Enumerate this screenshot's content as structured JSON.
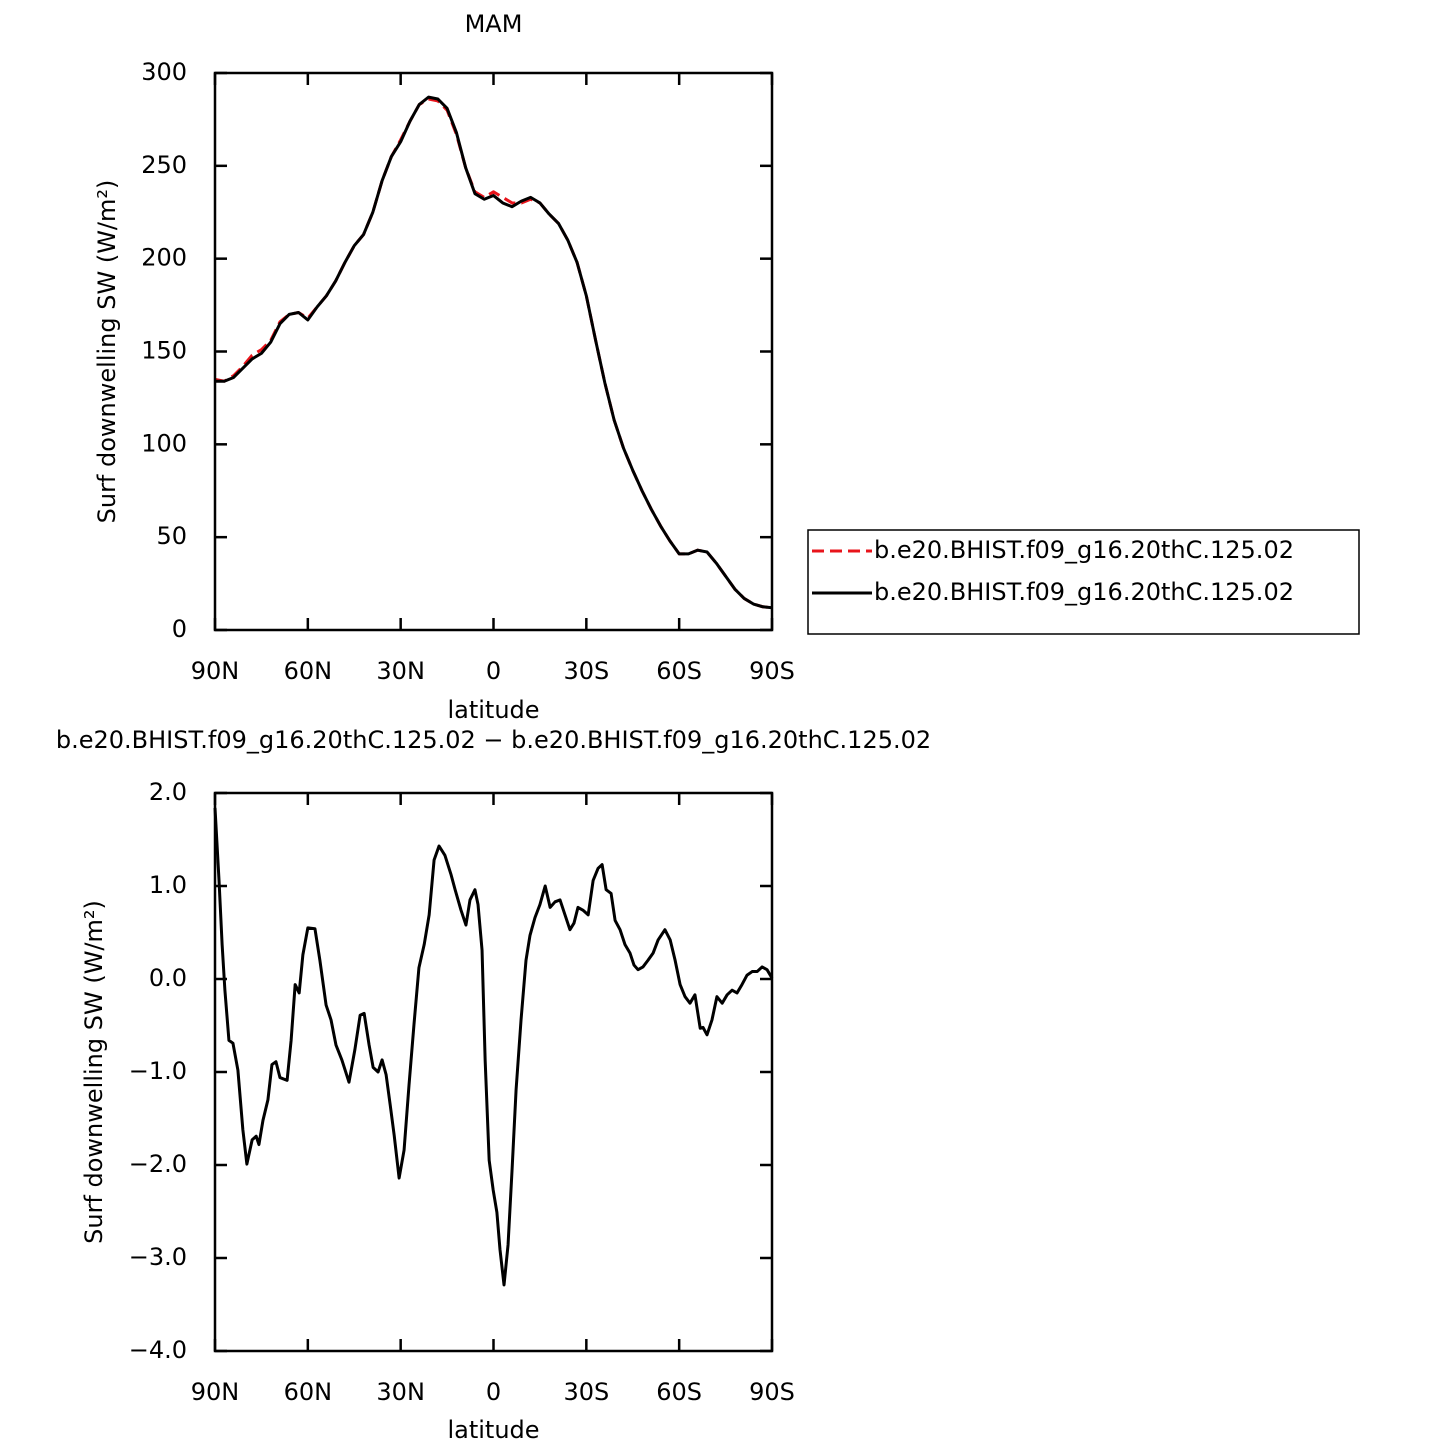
{
  "chart_data": [
    {
      "type": "line",
      "title": "MAM",
      "xlabel": "latitude",
      "ylabel": "Surf downwelling SW (W/m²)",
      "x": [
        90,
        87,
        84,
        81,
        78,
        75,
        72,
        69,
        66,
        63,
        60,
        57,
        54,
        51,
        48,
        45,
        42,
        39,
        36,
        33,
        30,
        27,
        24,
        21,
        18,
        15,
        12,
        9,
        6,
        3,
        0,
        -3,
        -6,
        -9,
        -12,
        -15,
        -18,
        -21,
        -24,
        -27,
        -30,
        -33,
        -36,
        -39,
        -42,
        -45,
        -48,
        -51,
        -54,
        -57,
        -60,
        -63,
        -66,
        -69,
        -72,
        -75,
        -78,
        -81,
        -84,
        -87,
        -90
      ],
      "series": [
        {
          "name": "b.e20.BHIST.f09_g16.20thC.125.02",
          "color": "#e8141b",
          "dashed": true,
          "values": [
            135,
            134,
            137,
            142,
            148,
            151,
            156,
            166,
            170,
            171,
            168,
            174,
            180,
            188,
            198,
            207,
            213,
            225,
            242,
            255,
            264,
            274,
            283,
            286,
            285,
            280,
            267,
            249,
            236,
            233,
            236,
            233,
            230,
            230,
            232,
            230,
            224,
            219,
            210,
            198,
            180,
            156,
            133,
            113,
            98,
            86,
            75,
            65,
            56,
            48,
            41,
            41,
            43,
            42,
            36,
            29,
            22,
            17,
            14,
            12.5,
            12
          ]
        },
        {
          "name": "b.e20.BHIST.f09_g16.20thC.125.02",
          "color": "#000000",
          "dashed": false,
          "values": [
            134,
            134,
            136,
            141,
            146,
            149,
            155,
            165,
            170,
            171,
            167,
            174,
            180,
            188,
            198,
            207,
            213,
            225,
            242,
            255,
            263,
            274,
            283,
            287,
            286,
            281,
            268,
            249,
            235,
            232,
            234,
            230,
            228,
            231,
            233,
            230,
            224,
            219,
            210,
            198,
            180,
            156,
            133,
            113,
            98,
            86,
            75,
            65,
            56,
            48,
            41,
            41,
            43,
            42,
            36,
            29,
            22,
            17,
            14,
            12.5,
            12
          ]
        }
      ],
      "xlim": [
        90,
        -90
      ],
      "xticks": [
        {
          "value": 90,
          "label": "90N"
        },
        {
          "value": 60,
          "label": "60N"
        },
        {
          "value": 30,
          "label": "30N"
        },
        0,
        {
          "value": -30,
          "label": "30S"
        },
        {
          "value": -60,
          "label": "60S"
        },
        {
          "value": -90,
          "label": "90S"
        }
      ],
      "ylim": [
        0,
        300
      ],
      "yticks": [
        0,
        50,
        100,
        150,
        200,
        250,
        300
      ]
    },
    {
      "type": "line",
      "title": "b.e20.BHIST.f09_g16.20thC.125.02 − b.e20.BHIST.f09_g16.20thC.125.02",
      "xlabel": "latitude",
      "ylabel": "Surf downwelling SW (W/m²)",
      "color": "#000000",
      "x": [
        90,
        88.7,
        87.7,
        86.8,
        85.5,
        84.2,
        82.6,
        81,
        79.7,
        78,
        76.7,
        75.8,
        74.5,
        72.9,
        71.6,
        70.3,
        69,
        66.7,
        65.4,
        64.1,
        62.8,
        61.6,
        60,
        57.7,
        56.1,
        54.1,
        52.5,
        50.9,
        49,
        46.7,
        44.8,
        43.1,
        41.8,
        40.2,
        38.9,
        37.3,
        36,
        34.7,
        33.4,
        32.1,
        30.5,
        28.9,
        27.3,
        25.7,
        24.1,
        22.4,
        20.8,
        19.2,
        17.6,
        15.7,
        13.7,
        12.4,
        10.5,
        8.9,
        7.6,
        6,
        5,
        3.7,
        2.7,
        1.4,
        0.1,
        -1.1,
        -2.1,
        -3.4,
        -4.7,
        -6,
        -7.3,
        -8.9,
        -10.5,
        -11.8,
        -13.4,
        -15,
        -16.7,
        -18.3,
        -19.9,
        -21.5,
        -23.1,
        -24.7,
        -26,
        -27.3,
        -28.9,
        -30.6,
        -32.2,
        -33.8,
        -35.1,
        -36.4,
        -38,
        -39.3,
        -40.9,
        -42.5,
        -44.1,
        -45.4,
        -46.7,
        -48.3,
        -49.9,
        -51.6,
        -53.2,
        -55.4,
        -57.1,
        -58.7,
        -60.3,
        -61.9,
        -63.5,
        -65.1,
        -66.8,
        -67.7,
        -69,
        -70.6,
        -72.2,
        -73.9,
        -75.5,
        -77.1,
        -78.7,
        -80.3,
        -81.9,
        -83.6,
        -85.2,
        -86.8,
        -88.4,
        -90
      ],
      "values": [
        1.84,
        1.06,
        0.37,
        -0.12,
        -0.66,
        -0.69,
        -0.98,
        -1.62,
        -1.99,
        -1.73,
        -1.69,
        -1.78,
        -1.52,
        -1.3,
        -0.92,
        -0.89,
        -1.06,
        -1.09,
        -0.66,
        -0.06,
        -0.15,
        0.26,
        0.55,
        0.54,
        0.2,
        -0.28,
        -0.44,
        -0.71,
        -0.87,
        -1.11,
        -0.76,
        -0.39,
        -0.37,
        -0.71,
        -0.95,
        -1.0,
        -0.87,
        -1.03,
        -1.35,
        -1.68,
        -2.14,
        -1.84,
        -1.14,
        -0.49,
        0.12,
        0.37,
        0.69,
        1.28,
        1.43,
        1.33,
        1.12,
        0.96,
        0.74,
        0.58,
        0.85,
        0.96,
        0.8,
        0.31,
        -0.87,
        -1.95,
        -2.27,
        -2.51,
        -2.91,
        -3.29,
        -2.86,
        -2.05,
        -1.19,
        -0.44,
        0.2,
        0.47,
        0.66,
        0.8,
        1.0,
        0.77,
        0.83,
        0.85,
        0.69,
        0.53,
        0.6,
        0.77,
        0.74,
        0.69,
        1.06,
        1.19,
        1.23,
        0.96,
        0.92,
        0.63,
        0.53,
        0.37,
        0.28,
        0.15,
        0.1,
        0.13,
        0.2,
        0.28,
        0.42,
        0.53,
        0.42,
        0.2,
        -0.06,
        -0.19,
        -0.26,
        -0.17,
        -0.53,
        -0.52,
        -0.6,
        -0.44,
        -0.19,
        -0.26,
        -0.17,
        -0.12,
        -0.15,
        -0.06,
        0.04,
        0.08,
        0.08,
        0.13,
        0.1,
        0.01
      ],
      "xlim": [
        90,
        -90
      ],
      "xticks": [
        {
          "value": 90,
          "label": "90N"
        },
        {
          "value": 60,
          "label": "60N"
        },
        {
          "value": 30,
          "label": "30N"
        },
        0,
        {
          "value": -30,
          "label": "30S"
        },
        {
          "value": -60,
          "label": "60S"
        },
        {
          "value": -90,
          "label": "90S"
        }
      ],
      "ylim": [
        -4,
        2
      ],
      "yticks": [
        {
          "value": -4,
          "label": "−4.0"
        },
        {
          "value": -3,
          "label": "−3.0"
        },
        {
          "value": -2,
          "label": "−2.0"
        },
        {
          "value": -1,
          "label": "−1.0"
        },
        {
          "value": 0,
          "label": "0.0"
        },
        {
          "value": 1,
          "label": "1.0"
        },
        {
          "value": 2,
          "label": "2.0"
        }
      ]
    }
  ]
}
